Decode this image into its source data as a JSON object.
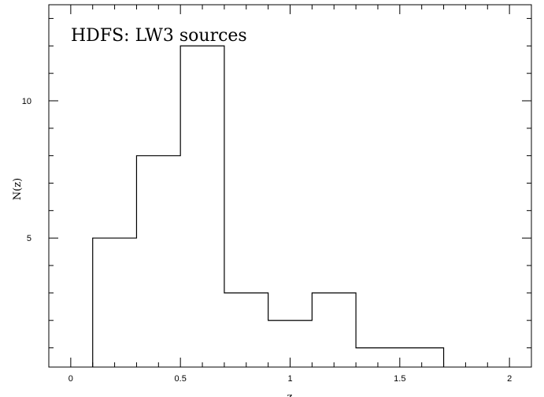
{
  "chart_data": {
    "type": "bar",
    "style": "step-histogram",
    "title": "HDFS: LW3 sources",
    "xlabel": "z",
    "ylabel": "N(z)",
    "xlim": [
      -0.1,
      2.1
    ],
    "ylim": [
      0.3,
      13.5
    ],
    "x_ticks": [
      0,
      0.5,
      1,
      1.5,
      2
    ],
    "x_tick_labels": [
      "0",
      "0.5",
      "1",
      "1.5",
      "2"
    ],
    "y_ticks": [
      5,
      10
    ],
    "y_tick_labels": [
      "5",
      "10"
    ],
    "bin_edges": [
      0.1,
      0.3,
      0.5,
      0.7,
      0.9,
      1.1,
      1.3,
      1.5,
      1.7
    ],
    "values": [
      5,
      8,
      12,
      3,
      2,
      3,
      1,
      1
    ],
    "grid": false,
    "legend": "none"
  }
}
